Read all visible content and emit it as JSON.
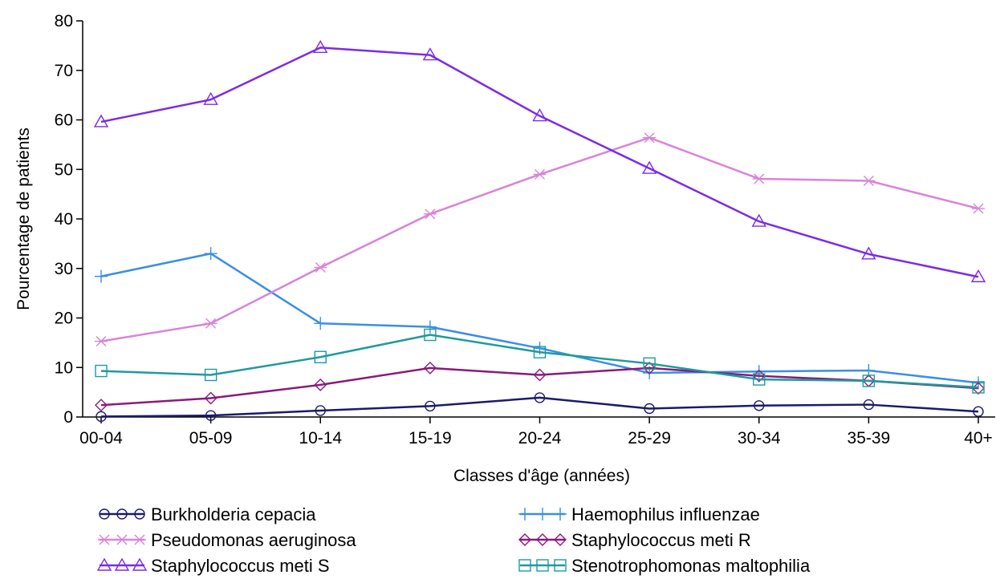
{
  "chart_data": {
    "type": "line",
    "title": "",
    "xlabel": "Classes d'âge (années)",
    "ylabel": "Pourcentage de patients",
    "categories": [
      "00-04",
      "05-09",
      "10-14",
      "15-19",
      "20-24",
      "25-29",
      "30-34",
      "35-39",
      "40+"
    ],
    "ylim": [
      0,
      80
    ],
    "yticks": [
      0,
      10,
      20,
      30,
      40,
      50,
      60,
      70,
      80
    ],
    "grid": false,
    "legend_position": "bottom",
    "series": [
      {
        "name": "Burkholderia cepacia",
        "marker": "circle",
        "color": "#1a1a6e",
        "values": [
          0.1,
          0.3,
          1.3,
          2.2,
          3.9,
          1.7,
          2.3,
          2.5,
          1.1
        ]
      },
      {
        "name": "Haemophilus influenzae",
        "marker": "plus",
        "color": "#3a8ee6",
        "values": [
          28.4,
          33.0,
          18.9,
          18.2,
          13.9,
          8.9,
          9.2,
          9.4,
          6.9
        ]
      },
      {
        "name": "Pseudomonas aeruginosa",
        "marker": "star",
        "color": "#d983d9",
        "values": [
          15.3,
          18.9,
          30.2,
          41.0,
          49.0,
          56.4,
          48.1,
          47.7,
          42.1
        ]
      },
      {
        "name": "Staphylococcus meti R",
        "marker": "diamond",
        "color": "#8a1a7a",
        "values": [
          2.4,
          3.8,
          6.5,
          9.9,
          8.5,
          9.9,
          8.3,
          7.3,
          5.8
        ]
      },
      {
        "name": "Staphylococcus meti S",
        "marker": "triangle",
        "color": "#7b2be6",
        "values": [
          59.6,
          64.1,
          74.6,
          73.1,
          60.8,
          50.2,
          39.5,
          32.9,
          28.3
        ]
      },
      {
        "name": "Stenotrophomonas maltophilia",
        "marker": "square",
        "color": "#1f9a9e",
        "values": [
          9.3,
          8.5,
          12.1,
          16.6,
          13.1,
          10.8,
          7.6,
          7.3,
          6.0
        ]
      }
    ]
  }
}
